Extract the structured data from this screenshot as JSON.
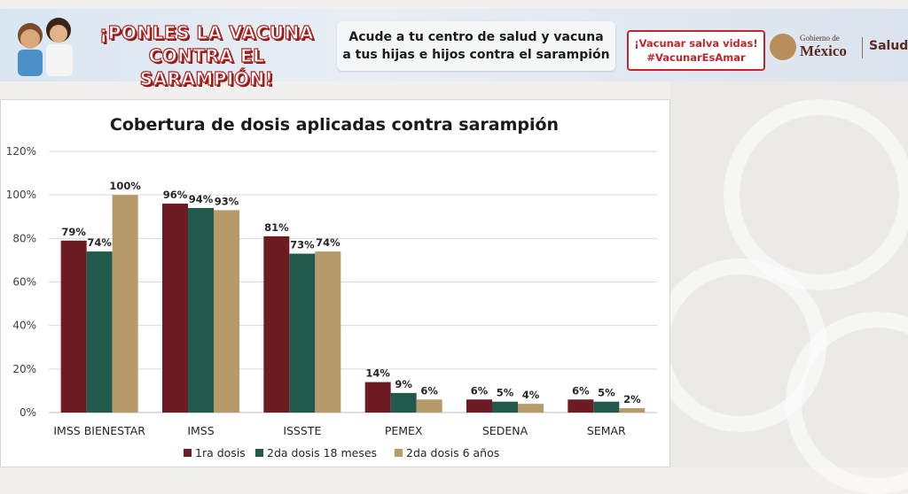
{
  "banner": {
    "headline_line1": "¡PONLES LA VACUNA",
    "headline_line2": "CONTRA EL SARAMPIÓN!",
    "message_line1": "Acude a tu centro de salud y vacuna",
    "message_line2": "a tus hijas e hijos contra el sarampión",
    "tag_line1": "¡Vacunar salva vidas!",
    "tag_line2": "#VacunarEsAmar",
    "gov_small": "Gobierno de",
    "gov_big": "México",
    "ministry": "Salud"
  },
  "colors": {
    "series1": "#6e1c23",
    "series2": "#215a4c",
    "series3": "#b79a6a",
    "brand_red": "#c0262b"
  },
  "chart_data": {
    "type": "bar",
    "title": "Cobertura de dosis aplicadas contra sarampión",
    "categories": [
      "IMSS BIENESTAR",
      "IMSS",
      "ISSSTE",
      "PEMEX",
      "SEDENA",
      "SEMAR"
    ],
    "series": [
      {
        "name": "1ra dosis",
        "values": [
          79,
          96,
          81,
          14,
          6,
          6
        ],
        "labels": [
          "79%",
          "96%",
          "81%",
          "14%",
          "6%",
          "6%"
        ]
      },
      {
        "name": "2da dosis 18 meses",
        "values": [
          74,
          94,
          73,
          9,
          5,
          5
        ],
        "labels": [
          "74%",
          "94%",
          "73%",
          "9%",
          "5%",
          "5%"
        ]
      },
      {
        "name": "2da dosis 6 años",
        "values": [
          100,
          93,
          74,
          6,
          4,
          2
        ],
        "labels": [
          "100%",
          "93%",
          "74%",
          "6%",
          "4%",
          "2%"
        ]
      }
    ],
    "ylim": [
      0,
      120
    ],
    "yticks": [
      0,
      20,
      40,
      60,
      80,
      100,
      120
    ],
    "ytick_labels": [
      "0%",
      "20%",
      "40%",
      "60%",
      "80%",
      "100%",
      "120%"
    ],
    "grid": true,
    "legend_position": "bottom"
  }
}
